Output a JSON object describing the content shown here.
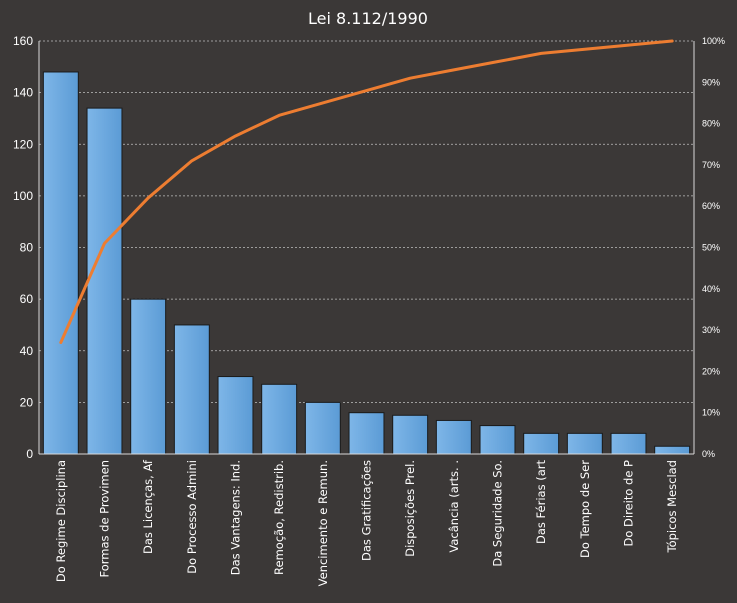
{
  "chart_data": {
    "type": "bar",
    "title": "Lei 8.112/1990",
    "categories": [
      "Do Regime Disciplina",
      "Formas de Provimen",
      "Das Licenças, Af",
      "Do Processo Admini",
      "Das Vantagens: Ind.",
      "Remoção, Redistrib.",
      "Vencimento e Remun.",
      "Das Gratificações",
      "Disposições Prel.",
      "Vacância (arts.  .",
      "Da Seguridade So.",
      "Das Férias (art",
      "Do Tempo de Ser",
      "Do Direito de P",
      "Tópicos Mesclad"
    ],
    "series": [
      {
        "values": [
          148,
          134,
          60,
          50,
          30,
          27,
          20,
          16,
          15,
          13,
          11,
          8,
          8,
          8,
          3
        ]
      },
      {
        "axis": "right",
        "type": "line",
        "values": [
          27,
          51,
          62,
          71,
          77,
          82,
          85,
          88,
          91,
          93,
          95,
          97,
          98,
          99,
          100
        ]
      }
    ],
    "xlabel": "",
    "ylabel": "",
    "ylim": [
      0,
      160
    ],
    "yticks": [
      0,
      20,
      40,
      60,
      80,
      100,
      120,
      140,
      160
    ],
    "y2lim": [
      0,
      100
    ],
    "y2ticks": [
      "0%",
      "10%",
      "20%",
      "30%",
      "40%",
      "50%",
      "60%",
      "70%",
      "80%",
      "90%",
      "100%"
    ],
    "grid": true,
    "legend": "none",
    "colors": {
      "background": "#3b3837",
      "bar": "#5b9bd5",
      "bar_light": "#7eb6e8",
      "line": "#ed7d31",
      "text": "#ffffff",
      "grid": "#bfbfbf"
    }
  }
}
